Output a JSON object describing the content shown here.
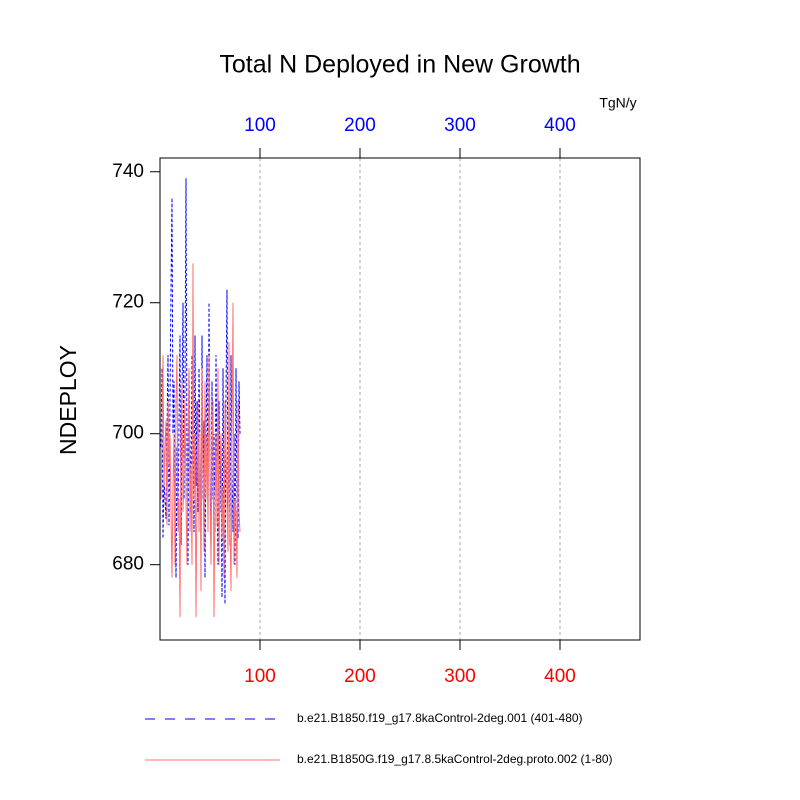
{
  "chart_data": {
    "type": "line",
    "title": "Total N Deployed in New Growth",
    "y_label": "NDEPLOY",
    "x_unit_label": "TgN/y",
    "x": [
      1,
      2,
      3,
      4,
      5,
      6,
      7,
      8,
      9,
      10,
      11,
      12,
      13,
      14,
      15,
      16,
      17,
      18,
      19,
      20,
      21,
      22,
      23,
      24,
      25,
      26,
      27,
      28,
      29,
      30,
      31,
      32,
      33,
      34,
      35,
      36,
      37,
      38,
      39,
      40,
      41,
      42,
      43,
      44,
      45,
      46,
      47,
      48,
      49,
      50,
      51,
      52,
      53,
      54,
      55,
      56,
      57,
      58,
      59,
      60,
      61,
      62,
      63,
      64,
      65,
      66,
      67,
      68,
      69,
      70,
      71,
      72,
      73,
      74,
      75,
      76,
      77,
      78,
      79,
      80
    ],
    "series": [
      {
        "name": "b.e21.B1850.f19_g17.8kaControl-2deg.001 (401-480)",
        "color": "#0000ff",
        "dashed": true,
        "values": [
          698,
          710,
          684,
          693,
          690,
          687,
          700,
          712,
          686,
          705,
          722,
          736,
          700,
          708,
          690,
          678,
          698,
          685,
          702,
          715,
          683,
          705,
          720,
          690,
          708,
          739,
          695,
          680,
          710,
          698,
          688,
          712,
          700,
          685,
          715,
          692,
          705,
          688,
          710,
          698,
          683,
          715,
          690,
          702,
          678,
          700,
          712,
          688,
          720,
          695,
          682,
          708,
          690,
          700,
          685,
          712,
          693,
          680,
          705,
          688,
          700,
          675,
          710,
          690,
          674,
          706,
          722,
          688,
          700,
          683,
          712,
          695,
          685,
          700,
          680,
          710,
          690,
          684,
          708,
          700
        ]
      },
      {
        "name": "b.e21.B1850G.f19_g17.8.5kaControl-2deg.proto.002 (1-80)",
        "color": "#ff7070",
        "dashed": false,
        "values": [
          690,
          700,
          712,
          692,
          698,
          702,
          686,
          705,
          695,
          700,
          688,
          678,
          692,
          700,
          680,
          705,
          712,
          685,
          690,
          672,
          700,
          708,
          688,
          695,
          705,
          690,
          680,
          698,
          710,
          685,
          695,
          680,
          726,
          690,
          700,
          672,
          692,
          705,
          685,
          700,
          676,
          710,
          695,
          682,
          708,
          690,
          700,
          685,
          712,
          692,
          680,
          698,
          705,
          672,
          690,
          700,
          686,
          710,
          680,
          695,
          700,
          684,
          692,
          678,
          705,
          698,
          690,
          682,
          714,
          686,
          676,
          700,
          720,
          680,
          690,
          688,
          678,
          705,
          688,
          685
        ]
      }
    ],
    "xlim": [
      0,
      480
    ],
    "xticks": [
      100,
      200,
      300,
      400
    ],
    "ylim": [
      668.5,
      742.1
    ],
    "yticks": [
      680,
      700,
      720,
      740
    ],
    "xtick_colors": {
      "top": "#0000ff",
      "bottom": "#ff0000"
    },
    "grid": "x",
    "legend": "bottom"
  }
}
